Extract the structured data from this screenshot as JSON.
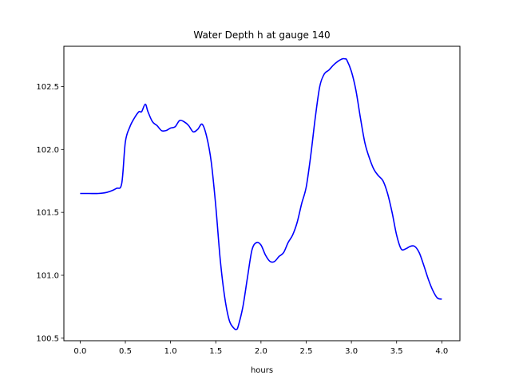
{
  "chart_data": {
    "type": "line",
    "title": "Water Depth h at gauge 140",
    "xlabel": "hours",
    "ylabel": "",
    "xlim": [
      -0.18,
      4.2
    ],
    "ylim": [
      100.48,
      102.82
    ],
    "xticks": [
      0.0,
      0.5,
      1.0,
      1.5,
      2.0,
      2.5,
      3.0,
      3.5,
      4.0
    ],
    "xtick_labels": [
      "0.0",
      "0.5",
      "1.0",
      "1.5",
      "2.0",
      "2.5",
      "3.0",
      "3.5",
      "4.0"
    ],
    "yticks": [
      100.5,
      101.0,
      101.5,
      102.0,
      102.5
    ],
    "ytick_labels": [
      "100.5",
      "101.0",
      "101.5",
      "102.0",
      "102.5"
    ],
    "grid": false,
    "series": [
      {
        "color": "#0000ff",
        "x": [
          0.0,
          0.1,
          0.2,
          0.3,
          0.4,
          0.46,
          0.5,
          0.55,
          0.6,
          0.65,
          0.68,
          0.72,
          0.75,
          0.8,
          0.85,
          0.9,
          0.95,
          1.0,
          1.05,
          1.1,
          1.15,
          1.2,
          1.25,
          1.3,
          1.35,
          1.4,
          1.45,
          1.5,
          1.55,
          1.6,
          1.65,
          1.7,
          1.73,
          1.75,
          1.8,
          1.85,
          1.9,
          1.95,
          2.0,
          2.05,
          2.1,
          2.15,
          2.2,
          2.25,
          2.3,
          2.35,
          2.4,
          2.45,
          2.5,
          2.55,
          2.6,
          2.65,
          2.7,
          2.75,
          2.8,
          2.85,
          2.9,
          2.93,
          2.95,
          3.0,
          3.05,
          3.1,
          3.15,
          3.2,
          3.25,
          3.3,
          3.35,
          3.4,
          3.45,
          3.5,
          3.55,
          3.6,
          3.65,
          3.7,
          3.75,
          3.8,
          3.85,
          3.9,
          3.95,
          4.0
        ],
        "y": [
          101.65,
          101.65,
          101.65,
          101.66,
          101.69,
          101.73,
          102.06,
          102.18,
          102.25,
          102.3,
          102.3,
          102.36,
          102.3,
          102.22,
          102.19,
          102.15,
          102.15,
          102.17,
          102.18,
          102.23,
          102.22,
          102.19,
          102.14,
          102.16,
          102.2,
          102.1,
          101.9,
          101.55,
          101.12,
          100.82,
          100.64,
          100.58,
          100.57,
          100.6,
          100.75,
          100.98,
          101.2,
          101.26,
          101.24,
          101.16,
          101.11,
          101.11,
          101.15,
          101.18,
          101.26,
          101.32,
          101.42,
          101.57,
          101.7,
          101.95,
          102.25,
          102.5,
          102.6,
          102.63,
          102.67,
          102.7,
          102.72,
          102.72,
          102.71,
          102.62,
          102.47,
          102.25,
          102.05,
          101.93,
          101.84,
          101.79,
          101.75,
          101.65,
          101.5,
          101.32,
          101.21,
          101.21,
          101.23,
          101.23,
          101.18,
          101.08,
          100.97,
          100.88,
          100.82,
          100.81
        ]
      }
    ]
  }
}
